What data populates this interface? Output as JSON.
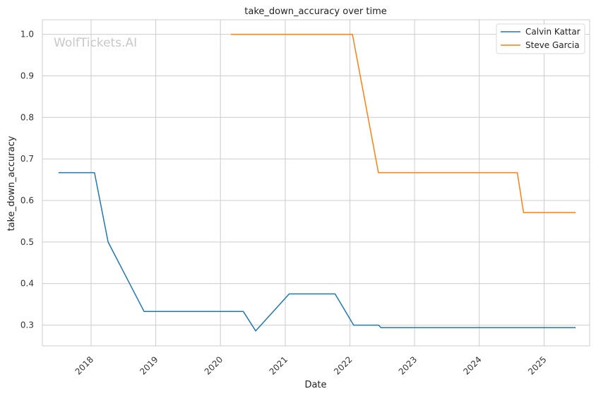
{
  "chart_data": {
    "type": "line",
    "title": "take_down_accuracy over time",
    "xlabel": "Date",
    "ylabel": "take_down_accuracy",
    "watermark": "WolfTickets.AI",
    "xlim": [
      "2017-04-01",
      "2025-09-15"
    ],
    "ylim": [
      0.25,
      1.035
    ],
    "x_ticks": [
      "2018-01-01",
      "2019-01-01",
      "2020-01-01",
      "2021-01-01",
      "2022-01-01",
      "2023-01-01",
      "2024-01-01",
      "2025-01-01"
    ],
    "x_tick_labels": [
      "2018",
      "2019",
      "2020",
      "2021",
      "2022",
      "2023",
      "2024",
      "2025"
    ],
    "y_ticks": [
      0.3,
      0.4,
      0.5,
      0.6,
      0.7,
      0.8,
      0.9,
      1.0
    ],
    "y_tick_labels": [
      "0.3",
      "0.4",
      "0.5",
      "0.6",
      "0.7",
      "0.8",
      "0.9",
      "1.0"
    ],
    "grid": true,
    "legend_position": "top-right",
    "series": [
      {
        "name": "Calvin Kattar",
        "color": "#1f77b4",
        "points": [
          {
            "x": "2017-07-01",
            "y": 0.667
          },
          {
            "x": "2018-01-20",
            "y": 0.667
          },
          {
            "x": "2018-04-07",
            "y": 0.5
          },
          {
            "x": "2018-10-27",
            "y": 0.333
          },
          {
            "x": "2020-05-09",
            "y": 0.333
          },
          {
            "x": "2020-07-18",
            "y": 0.286
          },
          {
            "x": "2021-01-23",
            "y": 0.375
          },
          {
            "x": "2021-10-09",
            "y": 0.375
          },
          {
            "x": "2022-01-22",
            "y": 0.3
          },
          {
            "x": "2022-06-11",
            "y": 0.3
          },
          {
            "x": "2022-06-25",
            "y": 0.294
          },
          {
            "x": "2025-06-28",
            "y": 0.294
          }
        ]
      },
      {
        "name": "Steve Garcia",
        "color": "#ff7f0e",
        "points": [
          {
            "x": "2020-02-29",
            "y": 1.0
          },
          {
            "x": "2022-01-15",
            "y": 1.0
          },
          {
            "x": "2022-06-11",
            "y": 0.667
          },
          {
            "x": "2024-08-03",
            "y": 0.667
          },
          {
            "x": "2024-09-07",
            "y": 0.571
          },
          {
            "x": "2025-06-28",
            "y": 0.571
          }
        ]
      }
    ]
  }
}
